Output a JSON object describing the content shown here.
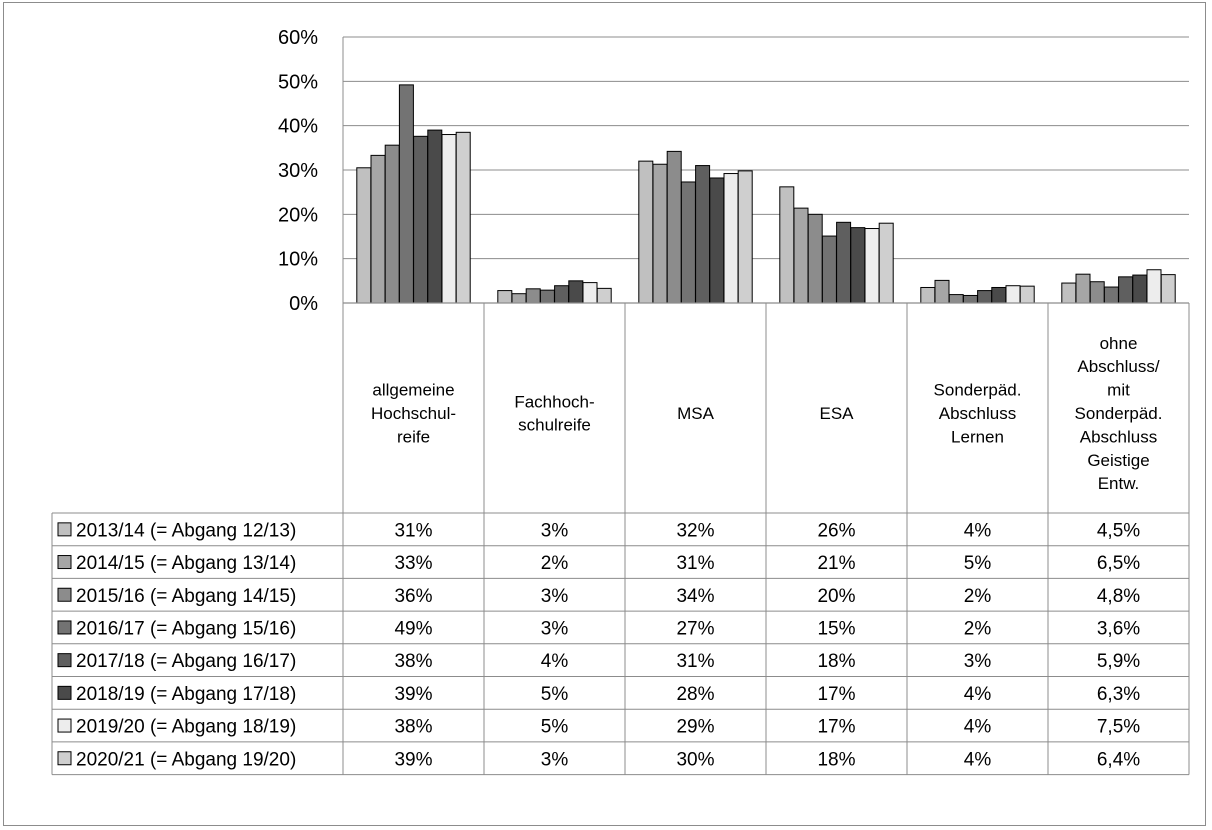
{
  "chart_data": {
    "type": "bar",
    "ylim": [
      0,
      60
    ],
    "y_ticks": [
      "0%",
      "10%",
      "20%",
      "30%",
      "40%",
      "50%",
      "60%"
    ],
    "grid": true,
    "legend_placement": "data-table",
    "categories": [
      [
        "allgemeine",
        "Hochschul-",
        "reife"
      ],
      [
        "Fachhoch-",
        "schulreife"
      ],
      [
        "MSA"
      ],
      [
        "ESA"
      ],
      [
        "Sonderpäd.",
        "Abschluss",
        "Lernen"
      ],
      [
        "ohne",
        "Abschluss/",
        "mit",
        "Sonderpäd.",
        "Abschluss",
        "Geistige",
        "Entw."
      ]
    ],
    "series": [
      {
        "name": "2013/14 (= Abgang 12/13)",
        "color": "#c0c0c0",
        "values": [
          30.5,
          2.8,
          32.0,
          26.2,
          3.5,
          4.5
        ],
        "labels": [
          "31%",
          "3%",
          "32%",
          "26%",
          "4%",
          "4,5%"
        ]
      },
      {
        "name": "2014/15 (= Abgang 13/14)",
        "color": "#a6a6a6",
        "values": [
          33.3,
          2.1,
          31.3,
          21.4,
          5.1,
          6.5
        ],
        "labels": [
          "33%",
          "2%",
          "31%",
          "21%",
          "5%",
          "6,5%"
        ]
      },
      {
        "name": "2015/16 (= Abgang 14/15)",
        "color": "#8c8c8c",
        "values": [
          35.6,
          3.2,
          34.2,
          20.0,
          1.9,
          4.8
        ],
        "labels": [
          "36%",
          "3%",
          "34%",
          "20%",
          "2%",
          "4,8%"
        ]
      },
      {
        "name": "2016/17 (= Abgang 15/16)",
        "color": "#737373",
        "values": [
          49.2,
          2.9,
          27.3,
          15.1,
          1.7,
          3.6
        ],
        "labels": [
          "49%",
          "3%",
          "27%",
          "15%",
          "2%",
          "3,6%"
        ]
      },
      {
        "name": "2017/18 (= Abgang 16/17)",
        "color": "#5f5f5f",
        "values": [
          37.6,
          3.9,
          31.0,
          18.2,
          2.8,
          5.9
        ],
        "labels": [
          "38%",
          "4%",
          "31%",
          "18%",
          "3%",
          "5,9%"
        ]
      },
      {
        "name": "2018/19 (= Abgang 17/18)",
        "color": "#4a4a4a",
        "values": [
          39.0,
          5.0,
          28.2,
          17.0,
          3.5,
          6.3
        ],
        "labels": [
          "39%",
          "5%",
          "28%",
          "17%",
          "4%",
          "6,3%"
        ]
      },
      {
        "name": "2019/20 (= Abgang 18/19)",
        "color": "#ededed",
        "values": [
          38.0,
          4.6,
          29.2,
          16.8,
          3.9,
          7.5
        ],
        "labels": [
          "38%",
          "5%",
          "29%",
          "17%",
          "4%",
          "7,5%"
        ]
      },
      {
        "name": "2020/21 (= Abgang 19/20)",
        "color": "#cfcfcf",
        "values": [
          38.5,
          3.3,
          29.8,
          18.0,
          3.8,
          6.4
        ],
        "labels": [
          "39%",
          "3%",
          "30%",
          "18%",
          "4%",
          "6,4%"
        ]
      }
    ]
  }
}
